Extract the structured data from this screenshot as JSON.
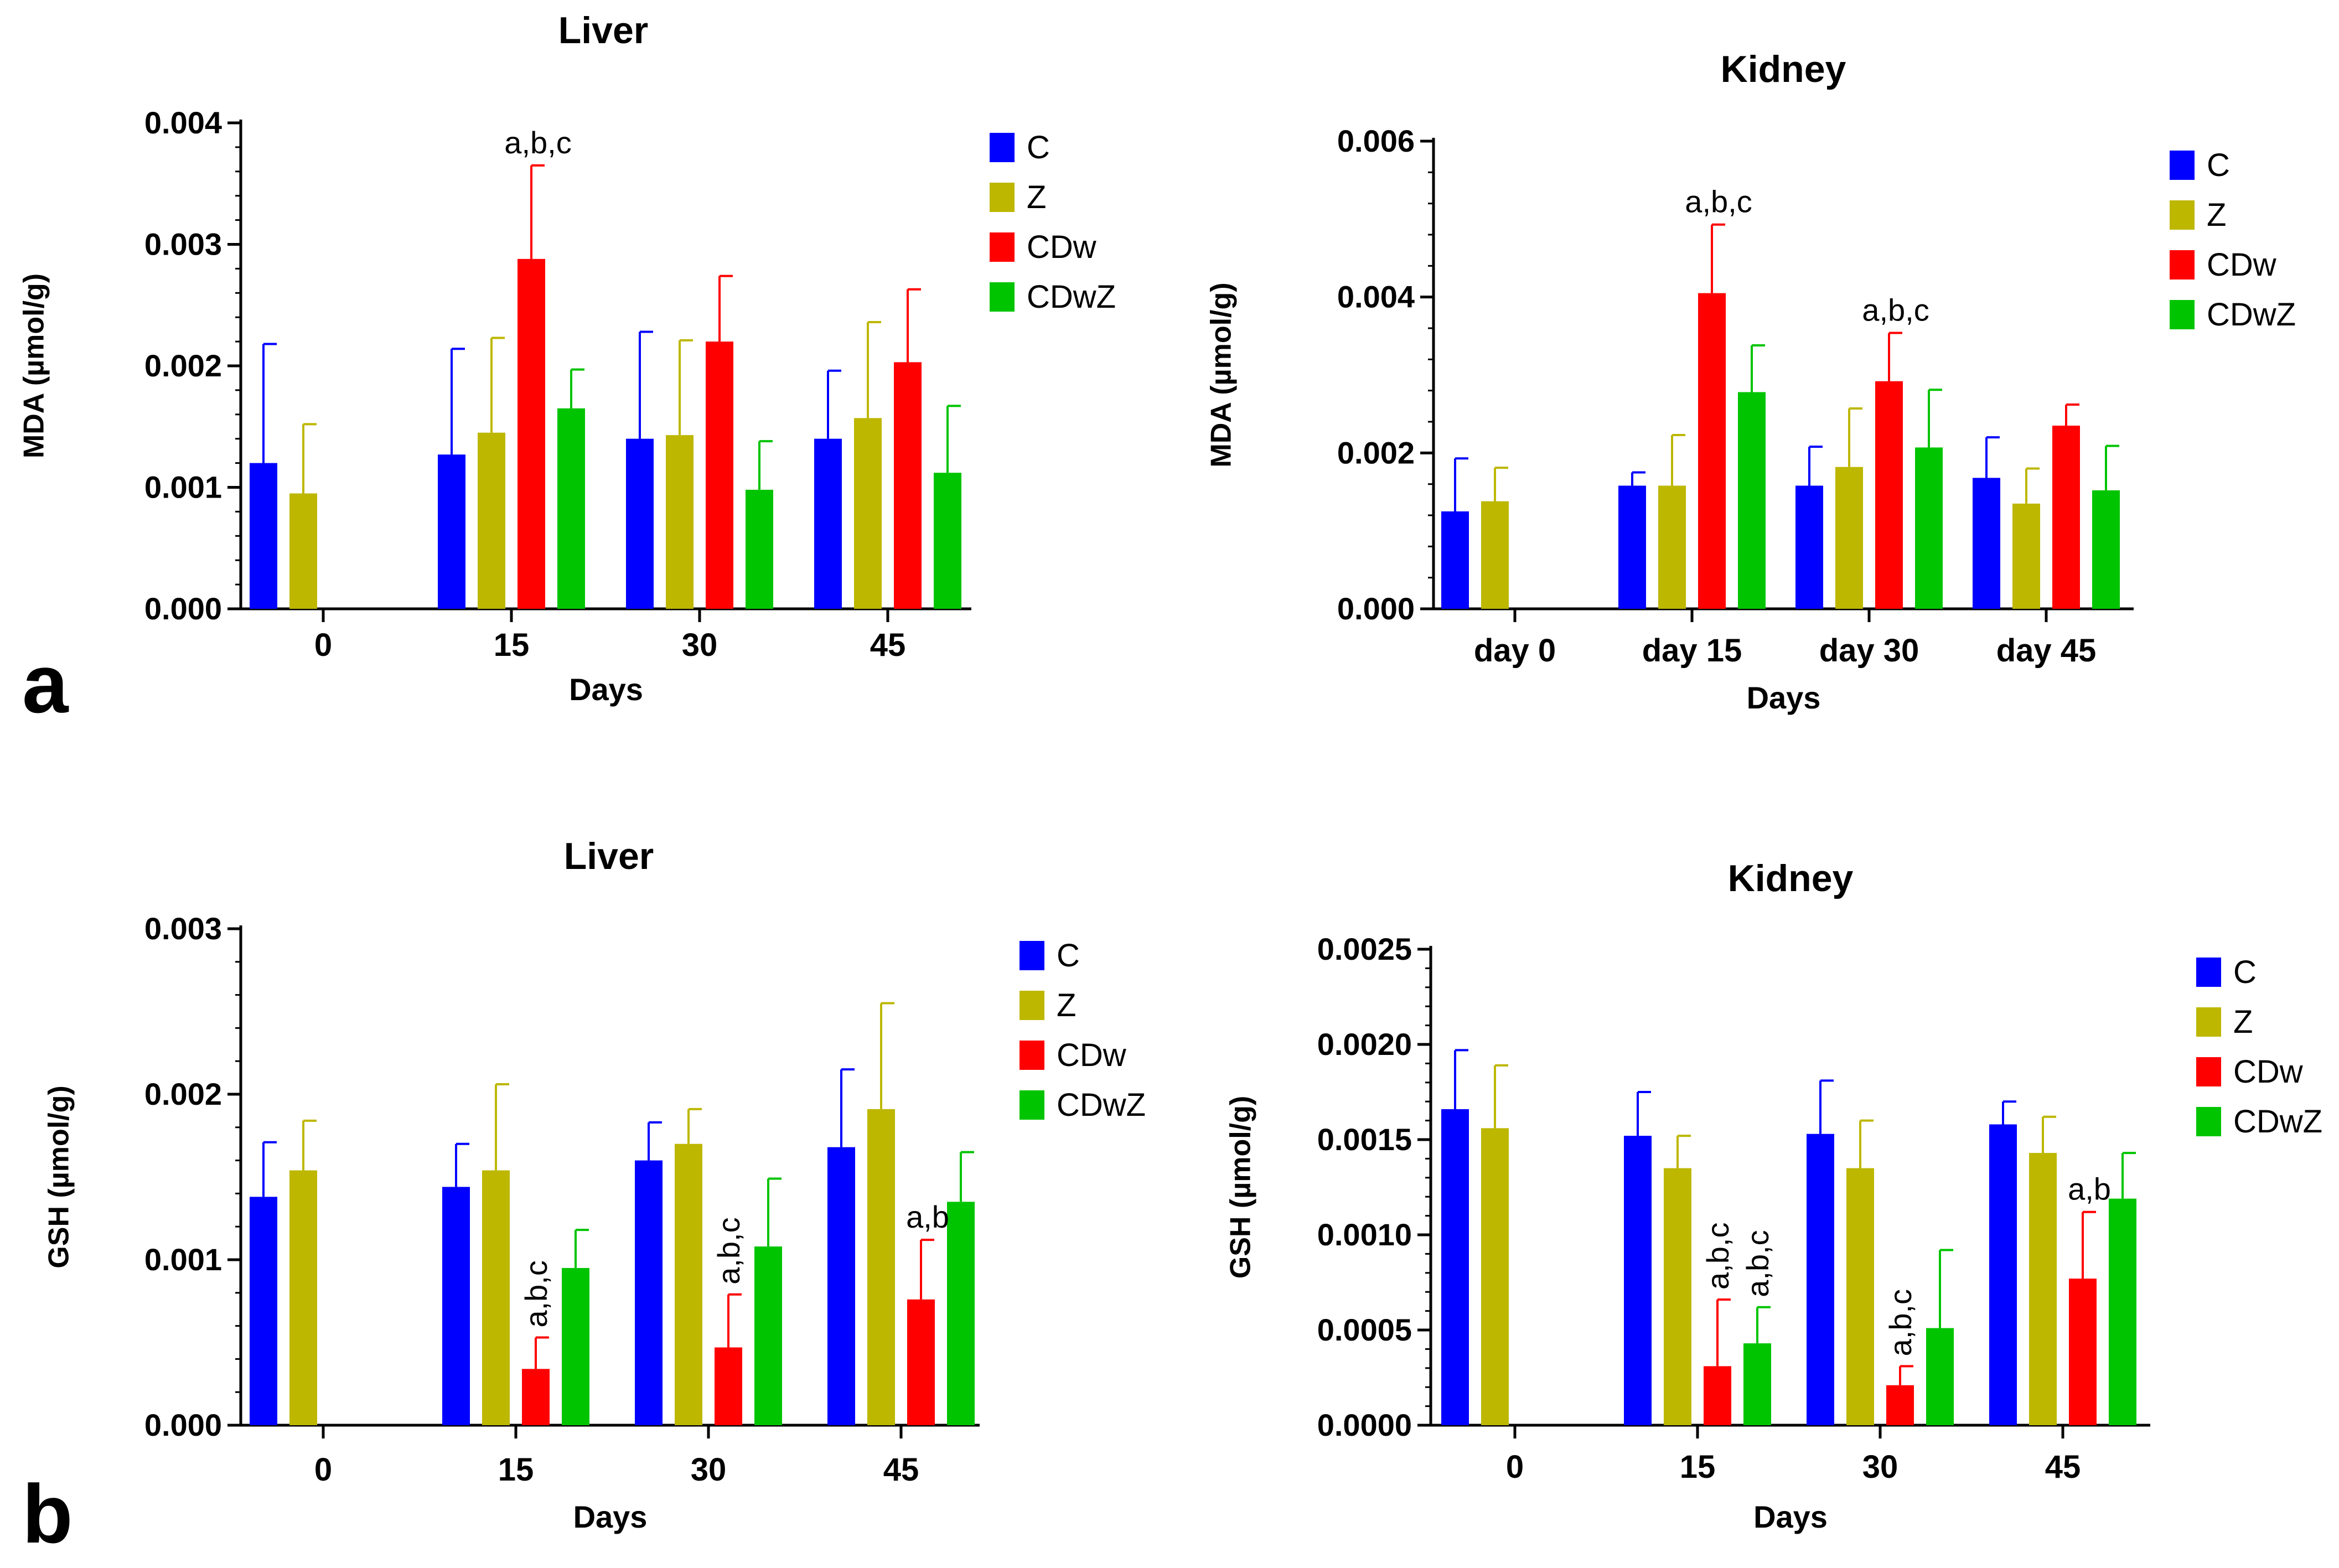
{
  "colors": {
    "C": "#0000FF",
    "Z": "#BDB700",
    "CDw": "#FF0000",
    "CDwZ": "#00C400",
    "axis": "#000000"
  },
  "panel_labels": {
    "a": "a",
    "b": "b"
  },
  "chart_data": [
    {
      "type": "bar",
      "id": "liver-mda",
      "title": "Liver",
      "xlabel": "Days",
      "ylabel": "MDA (µmol/g)",
      "ylim": [
        0,
        0.004
      ],
      "yticks": [
        "0.000",
        "0.001",
        "0.002",
        "0.003",
        "0.004"
      ],
      "ytick_values": [
        0,
        0.001,
        0.002,
        0.003,
        0.004
      ],
      "categories": [
        "0",
        "15",
        "30",
        "45"
      ],
      "series": [
        {
          "name": "C",
          "values": [
            0.0012,
            0.00127,
            0.0014,
            0.0014
          ],
          "errors": [
            0.00098,
            0.00087,
            0.00088,
            0.00056
          ]
        },
        {
          "name": "Z",
          "values": [
            0.00095,
            0.00145,
            0.00143,
            0.00157
          ],
          "errors": [
            0.00057,
            0.00078,
            0.00078,
            0.00079
          ]
        },
        {
          "name": "CDw",
          "values": [
            null,
            0.00288,
            0.0022,
            0.00203
          ],
          "errors": [
            null,
            0.00077,
            0.00054,
            0.0006
          ]
        },
        {
          "name": "CDwZ",
          "values": [
            null,
            0.00165,
            0.00098,
            0.00112
          ],
          "errors": [
            null,
            0.00032,
            0.0004,
            0.00055
          ]
        }
      ],
      "annotations": [
        {
          "category": "15",
          "series": "CDw",
          "text": "a,b,c"
        }
      ],
      "legend": "top-right"
    },
    {
      "type": "bar",
      "id": "kidney-mda",
      "title": "Kidney",
      "xlabel": "Days",
      "ylabel": "MDA (µmol/g)",
      "ylim": [
        0,
        0.006
      ],
      "yticks": [
        "0.000",
        "0.002",
        "0.004",
        "0.006"
      ],
      "ytick_values": [
        0,
        0.002,
        0.004,
        0.006
      ],
      "categories": [
        "day 0",
        "day 15",
        "day 30",
        "day 45"
      ],
      "series": [
        {
          "name": "C",
          "values": [
            0.00125,
            0.00158,
            0.00158,
            0.00168
          ],
          "errors": [
            0.00068,
            0.00017,
            0.0005,
            0.00052
          ]
        },
        {
          "name": "Z",
          "values": [
            0.00138,
            0.00158,
            0.00182,
            0.00135
          ],
          "errors": [
            0.00043,
            0.00065,
            0.00075,
            0.00045
          ]
        },
        {
          "name": "CDw",
          "values": [
            null,
            0.00405,
            0.00292,
            0.00235
          ],
          "errors": [
            null,
            0.00088,
            0.00062,
            0.00027
          ]
        },
        {
          "name": "CDwZ",
          "values": [
            null,
            0.00278,
            0.00207,
            0.00152
          ],
          "errors": [
            null,
            0.0006,
            0.00074,
            0.00057
          ]
        }
      ],
      "annotations": [
        {
          "category": "day 15",
          "series": "CDw",
          "text": "a,b,c"
        },
        {
          "category": "day 30",
          "series": "CDw",
          "text": "a,b,c"
        }
      ],
      "legend": "top-right"
    },
    {
      "type": "bar",
      "id": "liver-gsh",
      "title": "Liver",
      "xlabel": "Days",
      "ylabel": "GSH (µmol/g)",
      "ylim": [
        0,
        0.003
      ],
      "yticks": [
        "0.000",
        "0.001",
        "0.002",
        "0.003"
      ],
      "ytick_values": [
        0,
        0.001,
        0.002,
        0.003
      ],
      "categories": [
        "0",
        "15",
        "30",
        "45"
      ],
      "series": [
        {
          "name": "C",
          "values": [
            0.00138,
            0.00144,
            0.0016,
            0.00168
          ],
          "errors": [
            0.00033,
            0.00026,
            0.00023,
            0.00047
          ]
        },
        {
          "name": "Z",
          "values": [
            0.00154,
            0.00154,
            0.0017,
            0.00191
          ],
          "errors": [
            0.0003,
            0.00052,
            0.00021,
            0.00064
          ]
        },
        {
          "name": "CDw",
          "values": [
            null,
            0.00034,
            0.00047,
            0.00076
          ],
          "errors": [
            null,
            0.00019,
            0.00032,
            0.00036
          ]
        },
        {
          "name": "CDwZ",
          "values": [
            null,
            0.00095,
            0.00108,
            0.00135
          ],
          "errors": [
            null,
            0.00023,
            0.00041,
            0.0003
          ]
        }
      ],
      "annotations": [
        {
          "category": "15",
          "series": "CDw",
          "text": "a,b,c",
          "rotated": true
        },
        {
          "category": "30",
          "series": "CDw",
          "text": "a,b,c",
          "rotated": true
        },
        {
          "category": "45",
          "series": "CDw",
          "text": "a,b",
          "rotated": false
        }
      ],
      "legend": "top-right"
    },
    {
      "type": "bar",
      "id": "kidney-gsh",
      "title": "Kidney",
      "xlabel": "Days",
      "ylabel": "GSH (µmol/g)",
      "ylim": [
        0,
        0.0025
      ],
      "yticks": [
        "0.0000",
        "0.0005",
        "0.0010",
        "0.0015",
        "0.0020",
        "0.0025"
      ],
      "ytick_values": [
        0,
        0.0005,
        0.001,
        0.0015,
        0.002,
        0.0025
      ],
      "categories": [
        "0",
        "15",
        "30",
        "45"
      ],
      "series": [
        {
          "name": "C",
          "values": [
            0.00166,
            0.00152,
            0.00153,
            0.00158
          ],
          "errors": [
            0.00031,
            0.00023,
            0.00028,
            0.00012
          ]
        },
        {
          "name": "Z",
          "values": [
            0.00156,
            0.00135,
            0.00135,
            0.00143
          ],
          "errors": [
            0.00033,
            0.00017,
            0.00025,
            0.00019
          ]
        },
        {
          "name": "CDw",
          "values": [
            null,
            0.00031,
            0.00021,
            0.00077
          ],
          "errors": [
            null,
            0.00035,
            0.0001,
            0.00035
          ]
        },
        {
          "name": "CDwZ",
          "values": [
            null,
            0.00043,
            0.00051,
            0.00119
          ],
          "errors": [
            null,
            0.00019,
            0.00041,
            0.00024
          ]
        }
      ],
      "annotations": [
        {
          "category": "15",
          "series": "CDw",
          "text": "a,b,c",
          "rotated": true
        },
        {
          "category": "15",
          "series": "CDwZ",
          "text": "a,b,c",
          "rotated": true
        },
        {
          "category": "30",
          "series": "CDw",
          "text": "a,b,c",
          "rotated": true
        },
        {
          "category": "45",
          "series": "CDw",
          "text": "a,b",
          "rotated": false
        }
      ],
      "legend": "top-right"
    }
  ]
}
